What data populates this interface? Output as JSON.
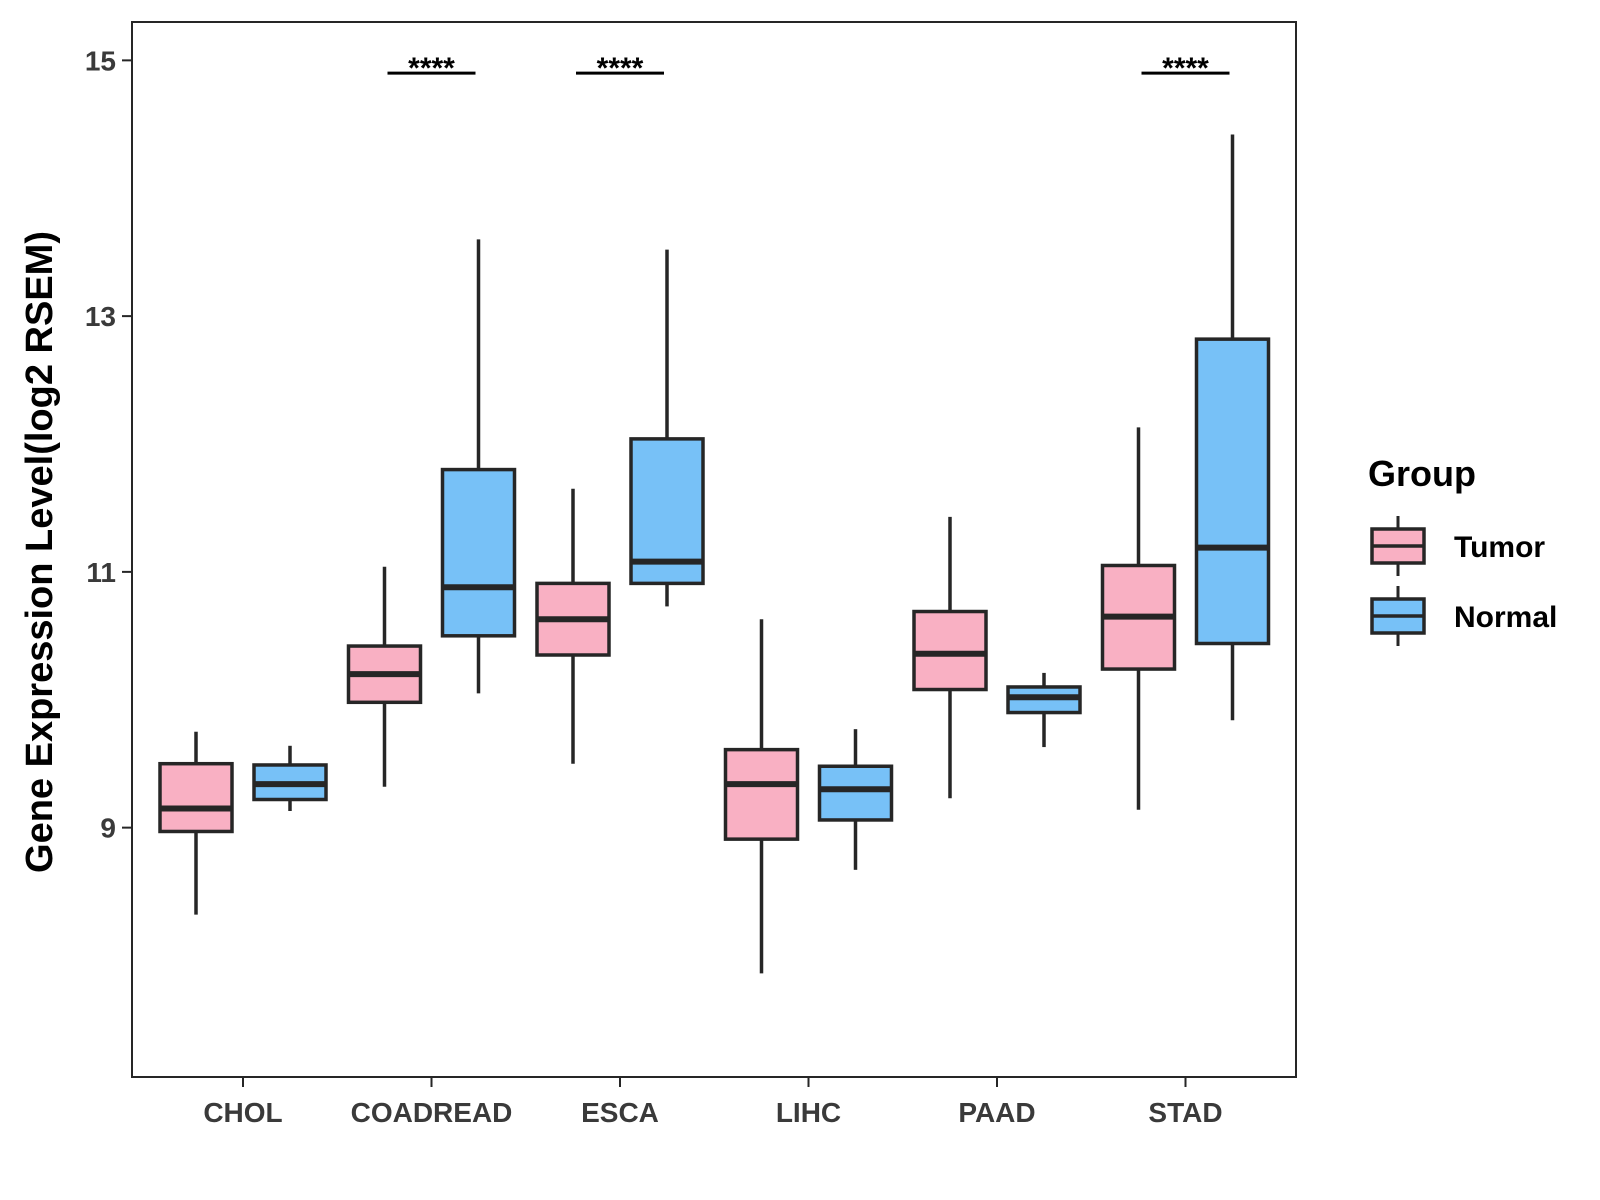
{
  "chart_data": {
    "type": "box",
    "title": "",
    "xlabel": "",
    "ylabel": "Gene Expression Level(log2 RSEM)",
    "ylim": [
      7.05,
      15.3
    ],
    "yticks": [
      9,
      11,
      13,
      15
    ],
    "categories": [
      "CHOL",
      "COADREAD",
      "ESCA",
      "LIHC",
      "PAAD",
      "STAD"
    ],
    "legend": {
      "title": "Group",
      "position": "right",
      "entries": [
        "Tumor",
        "Normal"
      ]
    },
    "colors": {
      "Tumor": "#f9b0c3",
      "Normal": "#77c1f7",
      "stroke": "#262626"
    },
    "series": [
      {
        "name": "Tumor",
        "boxes": [
          {
            "category": "CHOL",
            "whisker_low": 8.32,
            "q1": 8.97,
            "median": 9.15,
            "q3": 9.5,
            "whisker_high": 9.75
          },
          {
            "category": "COADREAD",
            "whisker_low": 9.32,
            "q1": 9.98,
            "median": 10.2,
            "q3": 10.42,
            "whisker_high": 11.04
          },
          {
            "category": "ESCA",
            "whisker_low": 9.5,
            "q1": 10.35,
            "median": 10.63,
            "q3": 10.91,
            "whisker_high": 11.65
          },
          {
            "category": "LIHC",
            "whisker_low": 7.86,
            "q1": 8.91,
            "median": 9.34,
            "q3": 9.61,
            "whisker_high": 10.63
          },
          {
            "category": "PAAD",
            "whisker_low": 9.23,
            "q1": 10.08,
            "median": 10.36,
            "q3": 10.69,
            "whisker_high": 11.43
          },
          {
            "category": "STAD",
            "whisker_low": 9.14,
            "q1": 10.24,
            "median": 10.65,
            "q3": 11.05,
            "whisker_high": 12.13
          }
        ]
      },
      {
        "name": "Normal",
        "boxes": [
          {
            "category": "CHOL",
            "whisker_low": 9.13,
            "q1": 9.22,
            "median": 9.34,
            "q3": 9.49,
            "whisker_high": 9.64
          },
          {
            "category": "COADREAD",
            "whisker_low": 10.05,
            "q1": 10.5,
            "median": 10.88,
            "q3": 11.8,
            "whisker_high": 13.6
          },
          {
            "category": "ESCA",
            "whisker_low": 10.73,
            "q1": 10.91,
            "median": 11.08,
            "q3": 12.04,
            "whisker_high": 13.52
          },
          {
            "category": "LIHC",
            "whisker_low": 8.67,
            "q1": 9.06,
            "median": 9.3,
            "q3": 9.48,
            "whisker_high": 9.77
          },
          {
            "category": "PAAD",
            "whisker_low": 9.63,
            "q1": 9.9,
            "median": 10.02,
            "q3": 10.1,
            "whisker_high": 10.21
          },
          {
            "category": "STAD",
            "whisker_low": 9.84,
            "q1": 10.44,
            "median": 11.19,
            "q3": 12.82,
            "whisker_high": 14.42
          }
        ]
      }
    ],
    "annotations": [
      {
        "category": "COADREAD",
        "text": "****",
        "y": 14.9
      },
      {
        "category": "ESCA",
        "text": "****",
        "y": 14.9
      },
      {
        "category": "STAD",
        "text": "****",
        "y": 14.9
      }
    ]
  }
}
